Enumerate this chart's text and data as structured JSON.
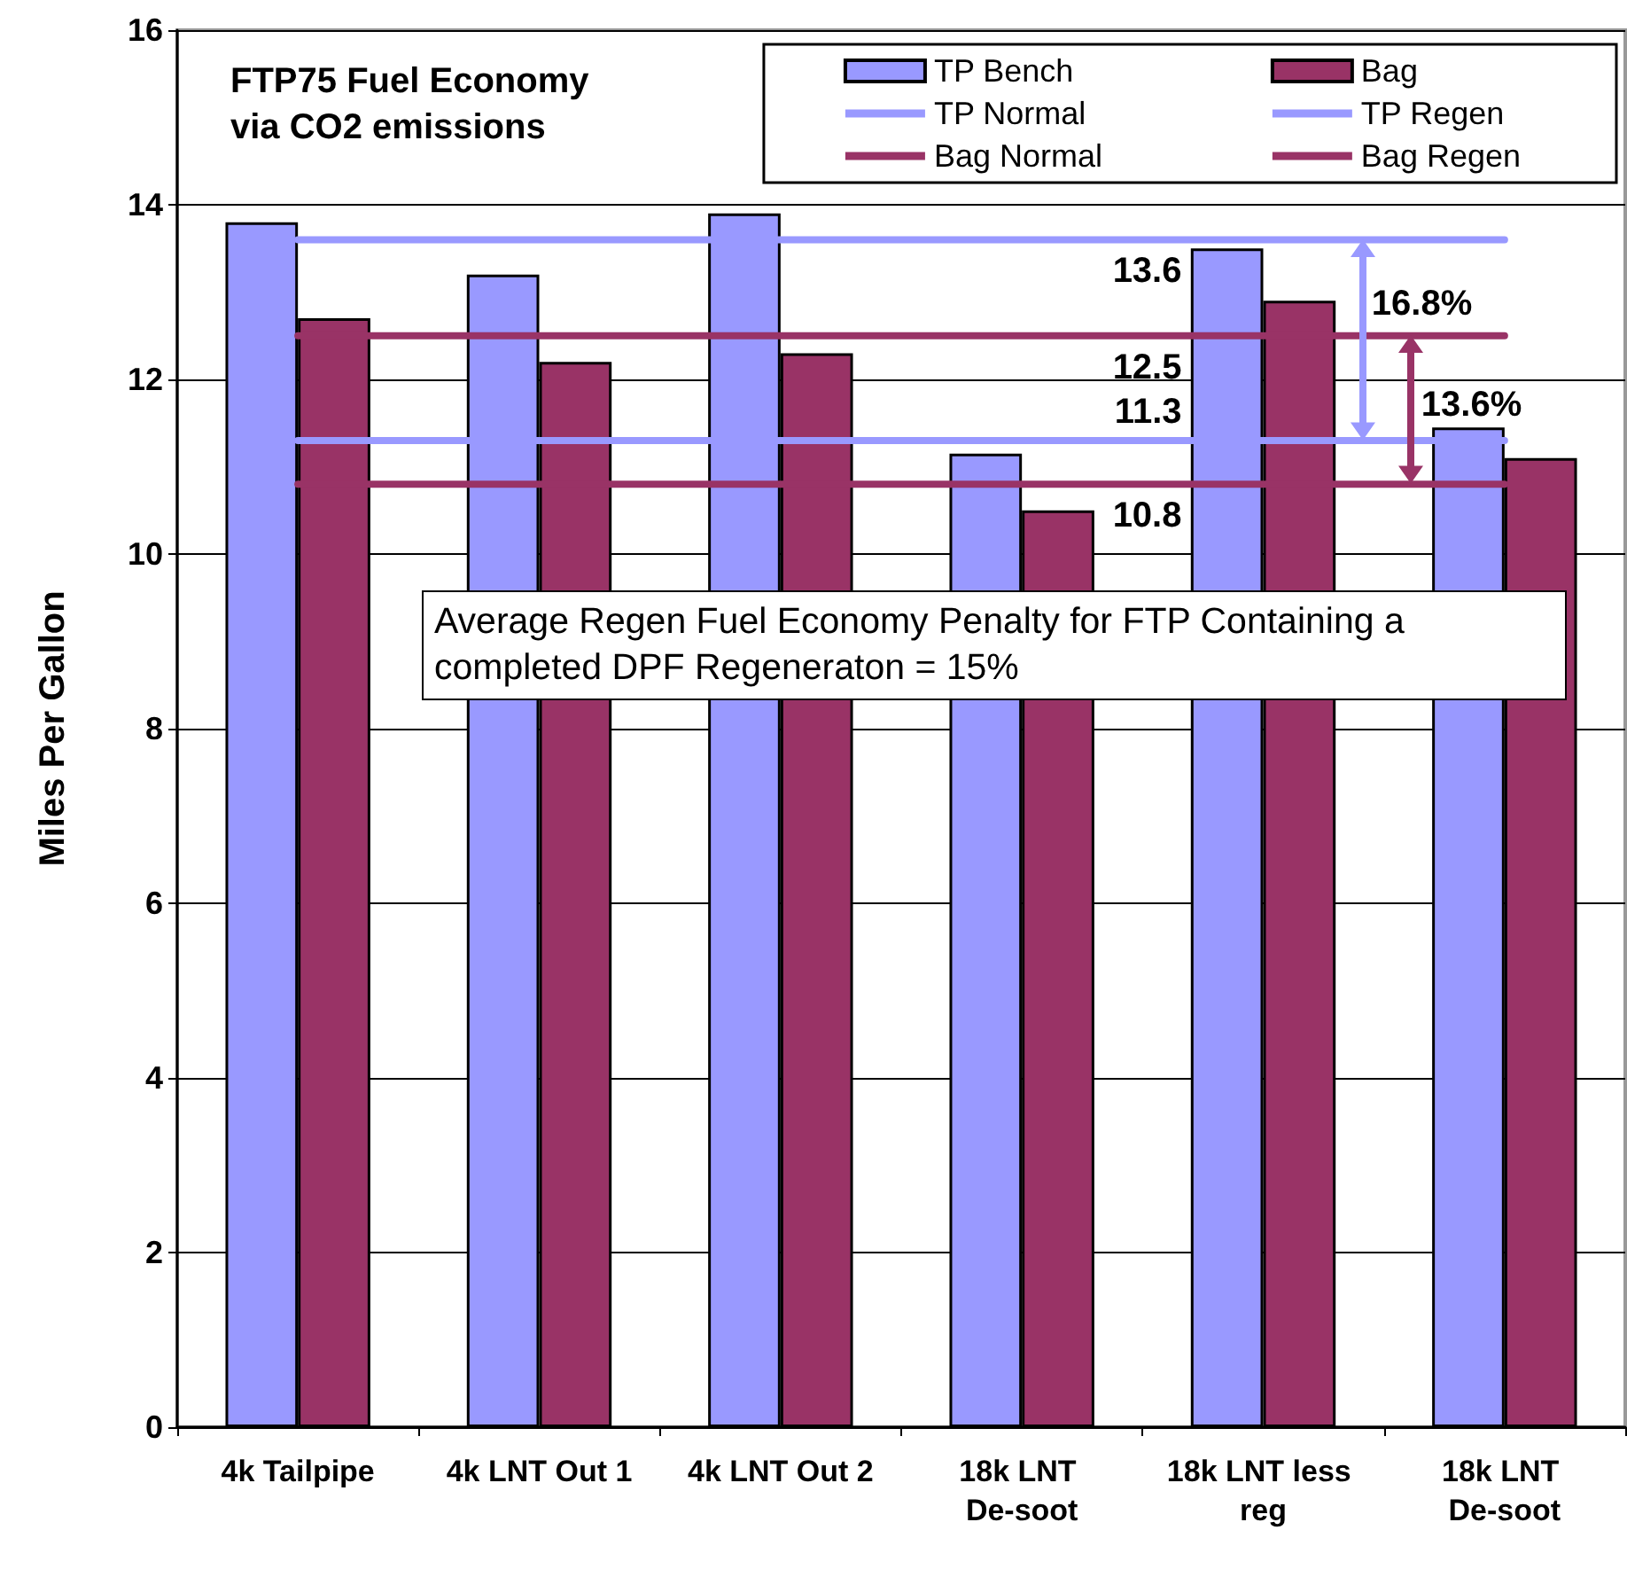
{
  "chart_data": {
    "type": "bar",
    "title": "FTP75 Fuel Economy via CO2 emissions",
    "ylabel": "Miles Per Gallon",
    "categories": [
      "4k Tailpipe",
      "4k LNT Out 1",
      "4k LNT Out 2",
      "18k LNT De-soot",
      "18k LNT less reg",
      "18k LNT De-soot"
    ],
    "series": [
      {
        "name": "TP Bench",
        "color": "#9999ff",
        "values": [
          13.8,
          13.2,
          13.9,
          11.15,
          13.5,
          11.45
        ]
      },
      {
        "name": "Bag",
        "color": "#993366",
        "values": [
          12.7,
          12.2,
          12.3,
          10.5,
          12.9,
          11.1
        ]
      },
      {
        "name": "TP Normal",
        "type": "line",
        "color": "#9999ff",
        "values": [
          13.6,
          13.6,
          13.6,
          13.6,
          13.6,
          13.6
        ]
      },
      {
        "name": "TP Regen",
        "type": "line",
        "color": "#9999ff",
        "values": [
          11.3,
          11.3,
          11.3,
          11.3,
          11.3,
          11.3
        ]
      },
      {
        "name": "Bag Normal",
        "type": "line",
        "color": "#993366",
        "values": [
          12.5,
          12.5,
          12.5,
          12.5,
          12.5,
          12.5
        ]
      },
      {
        "name": "Bag Regen",
        "type": "line",
        "color": "#993366",
        "values": [
          10.8,
          10.8,
          10.8,
          10.8,
          10.8,
          10.8
        ]
      }
    ],
    "ylim": [
      0,
      16
    ],
    "yticks": [
      0,
      2,
      4,
      6,
      8,
      10,
      12,
      14,
      16
    ],
    "grid": "y",
    "legend": "top right",
    "marker": "none",
    "annotations": [
      {
        "text": "13.6",
        "y": 13.6
      },
      {
        "text": "12.5",
        "y": 12.5
      },
      {
        "text": "11.3",
        "y": 11.3
      },
      {
        "text": "10.8",
        "y": 10.8
      },
      "16.8%",
      "13.6%",
      "Average Regen Fuel Economy Penalty for FTP Containing a completed DPF Regeneraton = 15%"
    ]
  }
}
